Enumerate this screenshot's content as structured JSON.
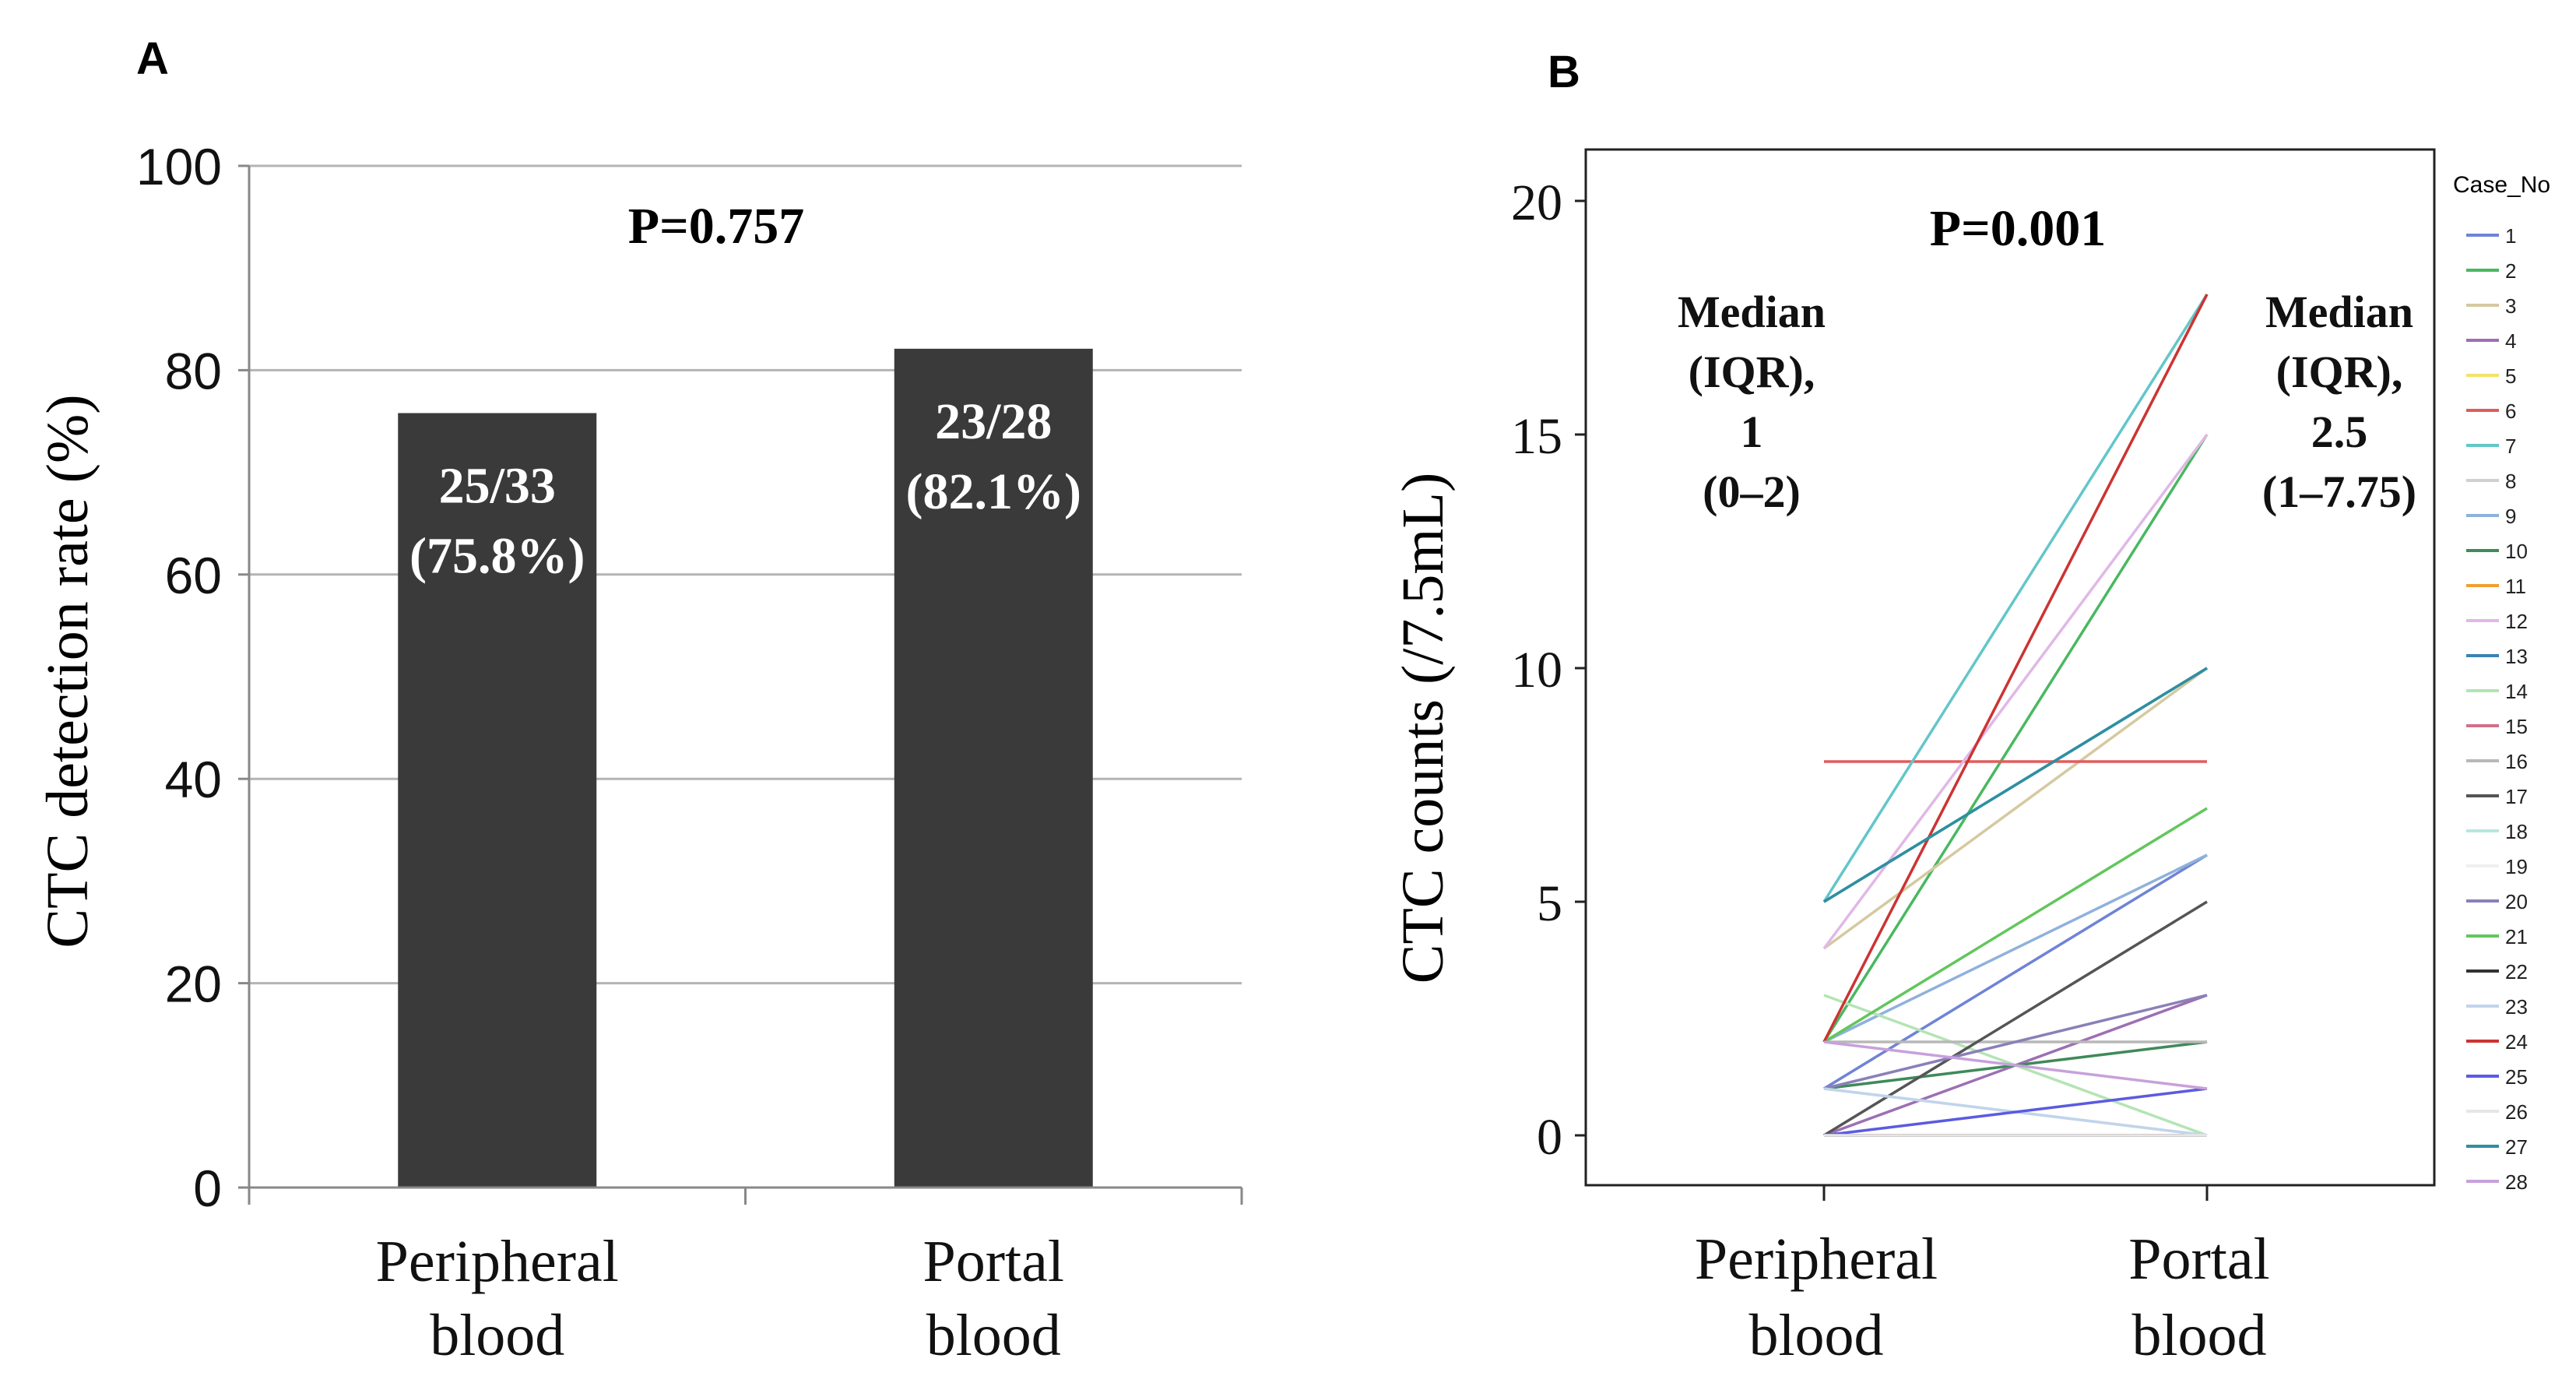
{
  "chart_data": [
    {
      "panel": "A",
      "type": "bar",
      "title": "P=0.757",
      "ylabel": "CTC detection rate (%)",
      "xlabel": "",
      "ylim": [
        0,
        100
      ],
      "yticks": [
        "0",
        "20",
        "40",
        "60",
        "80",
        "100"
      ],
      "grid": true,
      "categories": [
        [
          "Peripheral",
          "blood"
        ],
        [
          "Portal",
          "blood"
        ]
      ],
      "values": [
        75.8,
        82.1
      ],
      "bar_labels": [
        [
          "25/33",
          "(75.8%)"
        ],
        [
          "23/28",
          "(82.1%)"
        ]
      ],
      "bar_color": "#3a3a3a"
    },
    {
      "panel": "B",
      "type": "line",
      "title": "P=0.001",
      "ylabel": "CTC counts (/7.5mL)",
      "xlabel": "",
      "ylim": [
        0,
        20
      ],
      "yticks": [
        "0",
        "5",
        "10",
        "15",
        "20"
      ],
      "categories": [
        [
          "Peripheral",
          "blood"
        ],
        [
          "Portal",
          "blood"
        ]
      ],
      "annotations": {
        "left": [
          "Median",
          "(IQR),",
          "1",
          "(0–2)"
        ],
        "right": [
          "Median",
          "(IQR),",
          "2.5",
          "(1–7.75)"
        ]
      },
      "legend_title": "Case_No",
      "legend_position": "right",
      "series": [
        {
          "name": "1",
          "values": [
            1,
            6
          ],
          "color": "#6f83d6"
        },
        {
          "name": "2",
          "values": [
            2,
            15
          ],
          "color": "#49b860"
        },
        {
          "name": "3",
          "values": [
            4,
            10
          ],
          "color": "#d5c9a0"
        },
        {
          "name": "4",
          "values": [
            0,
            3
          ],
          "color": "#9d6fb4"
        },
        {
          "name": "5",
          "values": [
            0,
            1
          ],
          "color": "#f2e36a"
        },
        {
          "name": "6",
          "values": [
            8,
            8
          ],
          "color": "#e05d5d"
        },
        {
          "name": "7",
          "values": [
            5,
            18
          ],
          "color": "#63c6c9"
        },
        {
          "name": "8",
          "values": [
            1,
            2
          ],
          "color": "#d0d0d0"
        },
        {
          "name": "9",
          "values": [
            2,
            6
          ],
          "color": "#8fb1dc"
        },
        {
          "name": "10",
          "values": [
            1,
            2
          ],
          "color": "#3f8a5a"
        },
        {
          "name": "11",
          "values": [
            0,
            0
          ],
          "color": "#f0a030"
        },
        {
          "name": "12",
          "values": [
            4,
            15
          ],
          "color": "#e0b8e6"
        },
        {
          "name": "13",
          "values": [
            5,
            10
          ],
          "color": "#3c82b4"
        },
        {
          "name": "14",
          "values": [
            3,
            0
          ],
          "color": "#b4e4b4"
        },
        {
          "name": "15",
          "values": [
            0,
            0
          ],
          "color": "#d0708a"
        },
        {
          "name": "16",
          "values": [
            2,
            2
          ],
          "color": "#b8b8b8"
        },
        {
          "name": "17",
          "values": [
            0,
            5
          ],
          "color": "#555555"
        },
        {
          "name": "18",
          "values": [
            1,
            0
          ],
          "color": "#b8e6e2"
        },
        {
          "name": "19",
          "values": [
            0,
            0
          ],
          "color": "#f0f0f0"
        },
        {
          "name": "20",
          "values": [
            1,
            3
          ],
          "color": "#8a80b8"
        },
        {
          "name": "21",
          "values": [
            2,
            7
          ],
          "color": "#63c65c"
        },
        {
          "name": "22",
          "values": [
            0,
            0
          ],
          "color": "#333333"
        },
        {
          "name": "23",
          "values": [
            1,
            0
          ],
          "color": "#c2d4ec"
        },
        {
          "name": "24",
          "values": [
            2,
            18
          ],
          "color": "#cc3333"
        },
        {
          "name": "25",
          "values": [
            0,
            1
          ],
          "color": "#5a5ae6"
        },
        {
          "name": "26",
          "values": [
            0,
            0
          ],
          "color": "#e6e6e6"
        },
        {
          "name": "27",
          "values": [
            5,
            10
          ],
          "color": "#2f8fa0"
        },
        {
          "name": "28",
          "values": [
            2,
            1
          ],
          "color": "#c8a0dc"
        }
      ]
    }
  ]
}
